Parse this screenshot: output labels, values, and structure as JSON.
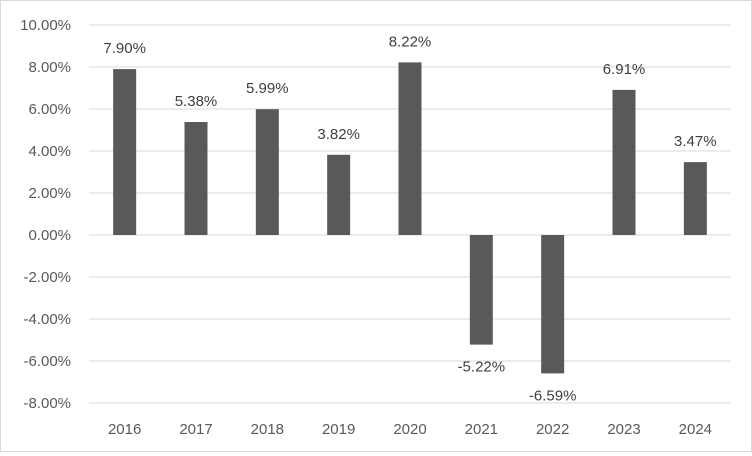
{
  "chart_data": {
    "type": "bar",
    "title": "",
    "xlabel": "",
    "ylabel": "",
    "categories": [
      "2016",
      "2017",
      "2018",
      "2019",
      "2020",
      "2021",
      "2022",
      "2023",
      "2024"
    ],
    "series": [
      {
        "values": [
          7.9,
          5.38,
          5.99,
          3.82,
          8.22,
          -5.22,
          -6.59,
          6.91,
          3.47
        ]
      }
    ],
    "data_labels": [
      "7.90%",
      "5.38%",
      "5.99%",
      "3.82%",
      "8.22%",
      "-5.22%",
      "-6.59%",
      "6.91%",
      "3.47%"
    ],
    "ylim": [
      -8,
      10
    ],
    "y_ticks": [
      10,
      8,
      6,
      4,
      2,
      0,
      -2,
      -4,
      -6,
      -8
    ],
    "y_tick_labels": [
      "10.00%",
      "8.00%",
      "6.00%",
      "4.00%",
      "2.00%",
      "0.00%",
      "-2.00%",
      "-4.00%",
      "-6.00%",
      "-8.00%"
    ],
    "grid": true,
    "legend": "none",
    "colors": {
      "bar": "#595959",
      "grid": "#d9d9d9",
      "text": "#595959"
    }
  }
}
